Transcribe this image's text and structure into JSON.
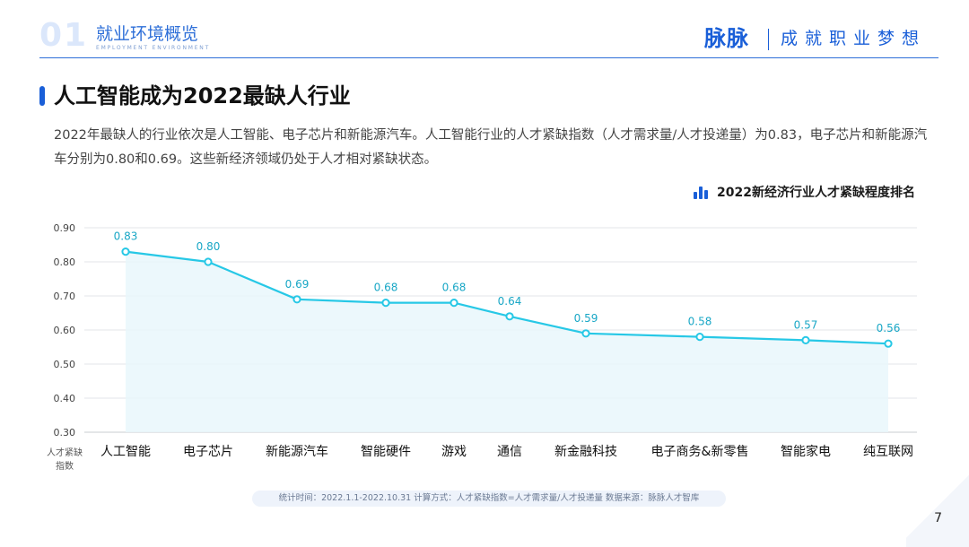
{
  "header": {
    "section_number": "01",
    "section_title": "就业环境概览",
    "section_subtitle": "EMPLOYMENT ENVIRONMENT",
    "brand": "脉脉",
    "slogan": "成就职业梦想"
  },
  "slide": {
    "title": "人工智能成为2022最缺人行业",
    "description": "2022年最缺人的行业依次是人工智能、电子芯片和新能源汽车。人工智能行业的人才紧缺指数（人才需求量/人才投递量）为0.83，电子芯片和新能源汽车分别为0.80和0.69。这些新经济领域仍处于人才相对紧缺状态。",
    "chart_caption": "2022新经济行业人才紧缺程度排名",
    "caption_icon": "bar-chart-icon",
    "footnote": "统计时间：2022.1.1-2022.10.31    计算方式：人才紧缺指数=人才需求量/人才投递量    数据来源：脉脉人才智库",
    "page_number": "7"
  },
  "colors": {
    "accent": "#1a5fd8",
    "line": "#27c8e6",
    "value_label": "#19a7c6",
    "area_fill": "#e9f7fb"
  },
  "chart_data": {
    "type": "line",
    "title": "2022新经济行业人才紧缺程度排名",
    "ylabel": "人才紧缺指数",
    "xlabel": "",
    "ylim": [
      0.3,
      0.9
    ],
    "yticks": [
      "0.30",
      "0.40",
      "0.50",
      "0.60",
      "0.70",
      "0.80",
      "0.90"
    ],
    "grid": true,
    "legend": "none",
    "categories": [
      "人工智能",
      "电子芯片",
      "新能源汽车",
      "智能硬件",
      "游戏",
      "通信",
      "新金融科技",
      "电子商务&新零售",
      "智能家电",
      "纯互联网"
    ],
    "values": [
      0.83,
      0.8,
      0.69,
      0.68,
      0.68,
      0.64,
      0.59,
      0.58,
      0.57,
      0.56
    ],
    "value_labels": [
      "0.83",
      "0.80",
      "0.69",
      "0.68",
      "0.68",
      "0.64",
      "0.59",
      "0.58",
      "0.57",
      "0.56"
    ]
  }
}
